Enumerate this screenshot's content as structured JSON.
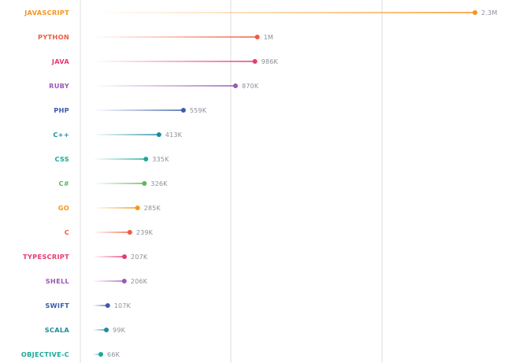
{
  "chart_data": {
    "type": "lollipop",
    "orientation": "horizontal",
    "grid": true,
    "categories": [
      "JAVASCRIPT",
      "PYTHON",
      "JAVA",
      "RUBY",
      "PHP",
      "C++",
      "CSS",
      "C#",
      "GO",
      "C",
      "TYPESCRIPT",
      "SHELL",
      "SWIFT",
      "SCALA",
      "OBJECTIVE-C"
    ],
    "values": [
      2300000,
      1000000,
      986000,
      870000,
      559000,
      413000,
      335000,
      326000,
      285000,
      239000,
      207000,
      206000,
      107000,
      99000,
      66000
    ],
    "value_labels": [
      "2.3M",
      "1M",
      "986K",
      "870K",
      "559K",
      "413K",
      "335K",
      "326K",
      "285K",
      "239K",
      "207K",
      "206K",
      "107K",
      "99K",
      "66K"
    ],
    "colors": [
      "#f7941d",
      "#f15a40",
      "#e83a6e",
      "#9b59b6",
      "#3b5ba9",
      "#1f8a9e",
      "#1aaa96",
      "#5cb85c",
      "#f7941d",
      "#f15a40",
      "#e83a6e",
      "#9b59b6",
      "#3b5ba9",
      "#1f8a9e",
      "#1aaa96"
    ],
    "xlim": [
      0,
      2300000
    ],
    "title": "",
    "xlabel": "",
    "ylabel": ""
  }
}
